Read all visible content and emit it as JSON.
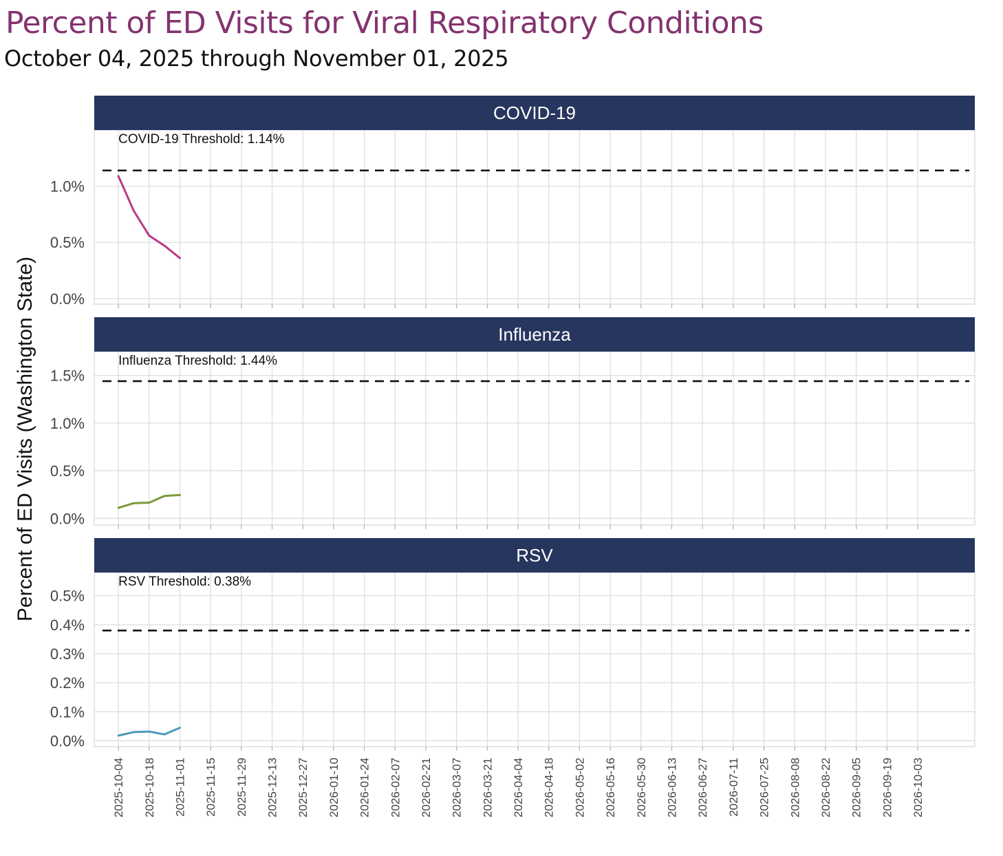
{
  "page": {
    "title": "Percent of ED Visits for Viral Respiratory Conditions",
    "subtitle": "October 04, 2025 through November 01, 2025"
  },
  "colors": {
    "title": "#84336f",
    "strip": "#27365f",
    "grid": "#dcdde3",
    "threshold": "#111111"
  },
  "chart_data": {
    "type": "line",
    "ylabel": "Percent of ED Visits (Washington State)",
    "x_ticks": [
      "2025-10-04",
      "2025-10-18",
      "2025-11-01",
      "2025-11-15",
      "2025-11-29",
      "2025-12-13",
      "2025-12-27",
      "2026-01-10",
      "2026-01-24",
      "2026-02-07",
      "2026-02-21",
      "2026-03-07",
      "2026-03-21",
      "2026-04-04",
      "2026-04-18",
      "2026-05-02",
      "2026-05-16",
      "2026-05-30",
      "2026-06-13",
      "2026-06-27",
      "2026-07-11",
      "2026-07-25",
      "2026-08-08",
      "2026-08-22",
      "2026-09-05",
      "2026-09-19",
      "2026-10-03"
    ],
    "x_range": [
      "2025-09-23",
      "2026-10-29"
    ],
    "x": [
      "2025-10-04",
      "2025-10-11",
      "2025-10-18",
      "2025-10-25",
      "2025-11-01"
    ],
    "grid": true,
    "panels": [
      {
        "name": "COVID-19",
        "color": "#b93a86",
        "values": [
          1.09,
          0.78,
          0.56,
          0.47,
          0.36
        ],
        "threshold": 1.14,
        "threshold_label": "COVID-19 Threshold: 1.14%",
        "ylim": [
          -0.05,
          1.5
        ],
        "yticks": [
          0.0,
          0.5,
          1.0
        ],
        "ytick_labels": [
          "0.0%",
          "0.5%",
          "1.0%"
        ]
      },
      {
        "name": "Influenza",
        "color": "#7a9a3a",
        "values": [
          0.11,
          0.16,
          0.165,
          0.235,
          0.245
        ],
        "threshold": 1.44,
        "threshold_label": "Influenza Threshold: 1.44%",
        "ylim": [
          -0.07,
          1.75
        ],
        "yticks": [
          0.0,
          0.5,
          1.0,
          1.5
        ],
        "ytick_labels": [
          "0.0%",
          "0.5%",
          "1.0%",
          "1.5%"
        ]
      },
      {
        "name": "RSV",
        "color": "#4a9ab8",
        "values": [
          0.018,
          0.03,
          0.032,
          0.022,
          0.045
        ],
        "threshold": 0.38,
        "threshold_label": "RSV Threshold: 0.38%",
        "ylim": [
          -0.02,
          0.58
        ],
        "yticks": [
          0.0,
          0.1,
          0.2,
          0.3,
          0.4,
          0.5
        ],
        "ytick_labels": [
          "0.0%",
          "0.1%",
          "0.2%",
          "0.3%",
          "0.4%",
          "0.5%"
        ]
      }
    ]
  }
}
